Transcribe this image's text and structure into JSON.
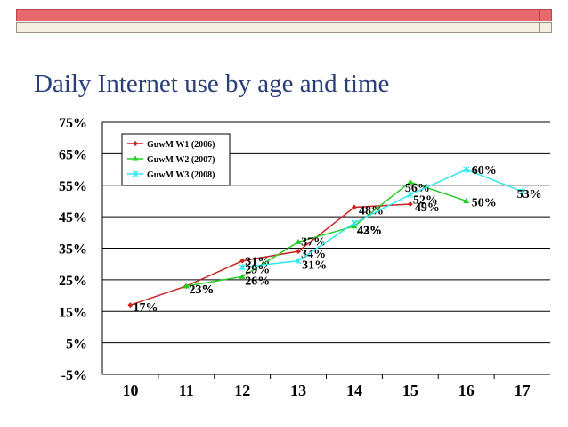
{
  "slide": {
    "title": "Daily Internet use by age and time",
    "colors": {
      "top_bar": "#e8696b",
      "bottom_bar": "#f2efe0",
      "title": "#2a3f7a"
    }
  },
  "chart_data": {
    "type": "line",
    "title": "",
    "xlabel": "",
    "ylabel": "",
    "x": [
      10,
      11,
      12,
      13,
      14,
      15,
      16,
      17
    ],
    "ylim": [
      -5,
      75
    ],
    "yticks": [
      "75%",
      "65%",
      "55%",
      "45%",
      "35%",
      "25%",
      "15%",
      "5%",
      "-5%"
    ],
    "ytick_values": [
      75,
      65,
      55,
      45,
      35,
      25,
      15,
      5,
      -5
    ],
    "grid": true,
    "legend_position": "top-left",
    "series": [
      {
        "name": "GuwM W1 (2006)",
        "color": "#cc2222",
        "marker": "diamond",
        "points": [
          [
            10,
            17
          ],
          [
            11,
            23
          ],
          [
            12,
            31
          ],
          [
            13,
            34
          ],
          [
            14,
            48
          ],
          [
            15,
            49
          ]
        ],
        "labels": [
          "17%",
          "23%",
          "31%",
          "34%",
          "48%",
          "49%"
        ]
      },
      {
        "name": "GuwM W2 (2007)",
        "color": "#22cc22",
        "marker": "triangle",
        "points": [
          [
            11,
            23
          ],
          [
            12,
            26
          ],
          [
            13,
            37
          ],
          [
            14,
            42
          ],
          [
            15,
            56
          ],
          [
            16,
            50
          ]
        ],
        "labels": [
          "23%",
          "26%",
          "37%",
          "42%",
          "56%",
          "50%"
        ]
      },
      {
        "name": "GuwM W3 (2008)",
        "color": "#33e6ee",
        "marker": "star",
        "points": [
          [
            12,
            29
          ],
          [
            13,
            31
          ],
          [
            14,
            43
          ],
          [
            15,
            52
          ],
          [
            16,
            60
          ],
          [
            17,
            53
          ]
        ],
        "labels": [
          "29%",
          "31%",
          "43%",
          "52%",
          "60%",
          "53%"
        ]
      }
    ]
  }
}
